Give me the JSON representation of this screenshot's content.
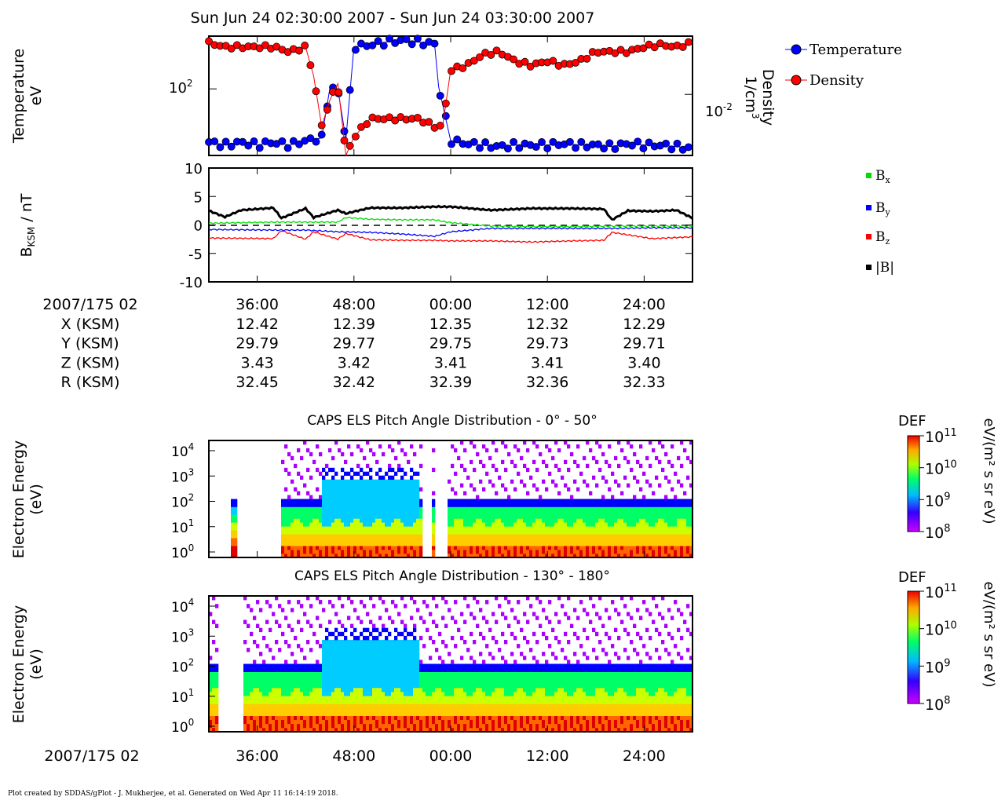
{
  "title": "Sun Jun 24 02:30:00 2007 - Sun Jun 24 03:30:00 2007",
  "footer": "Plot created by SDDAS/gPlot - J. Mukherjee, et al.  Generated on Wed Apr 11 16:14:19 2018.",
  "colors": {
    "temperature": "#0000ff",
    "density": "#ff0000",
    "bx": "#00dd00",
    "by": "#0000ff",
    "bz": "#ff0000",
    "bmag": "#000000",
    "spectrogram": [
      "#aa00ff",
      "#0000ff",
      "#00ccff",
      "#00ff66",
      "#ccff00",
      "#ffcc00",
      "#ff6600",
      "#dd0000"
    ]
  },
  "panel1": {
    "ylabel_line1": "Temperature",
    "ylabel_line2": "eV",
    "right_label_line1": "Density",
    "right_label_line2": "1/cm",
    "right_label_sup": "3",
    "left_tick": "10",
    "left_tick_sup": "2",
    "right_tick": "10",
    "right_tick_sup": "-2",
    "legend": [
      "Temperature",
      "Density"
    ]
  },
  "panel2": {
    "ylabel_main": "B",
    "ylabel_sub": "KSM",
    "ylabel_rest": " / nT",
    "yticks": [
      "10",
      "5",
      "0",
      "-5",
      "-10"
    ],
    "legend": [
      {
        "main": "B",
        "sub": "x"
      },
      {
        "main": "B",
        "sub": "y"
      },
      {
        "main": "B",
        "sub": "z"
      },
      {
        "main": "|B|",
        "sub": ""
      }
    ]
  },
  "ephemeris": {
    "rows": [
      {
        "label": "2007/175 02",
        "values": [
          "36:00",
          "48:00",
          "00:00",
          "12:00",
          "24:00"
        ]
      },
      {
        "label": "X (KSM)",
        "values": [
          "12.42",
          "12.39",
          "12.35",
          "12.32",
          "12.29"
        ]
      },
      {
        "label": "Y (KSM)",
        "values": [
          "29.79",
          "29.77",
          "29.75",
          "29.73",
          "29.71"
        ]
      },
      {
        "label": "Z (KSM)",
        "values": [
          "3.43",
          "3.42",
          "3.41",
          "3.41",
          "3.40"
        ]
      },
      {
        "label": "R (KSM)",
        "values": [
          "32.45",
          "32.42",
          "32.39",
          "32.36",
          "32.33"
        ]
      }
    ]
  },
  "spectrogram1": {
    "title": "CAPS ELS Pitch Angle Distribution - 0° - 50°",
    "ylabel_line1": "Electron Energy",
    "ylabel_line2": "(eV)",
    "colorbar_title": "DEF",
    "colorbar_units": "eV/(m² s sr eV)"
  },
  "spectrogram2": {
    "title": "CAPS ELS Pitch Angle Distribution - 130° - 180°",
    "ylabel_line1": "Electron Energy",
    "ylabel_line2": "(eV)",
    "colorbar_title": "DEF",
    "colorbar_units": "eV/(m² s sr eV)"
  },
  "energy_ticks": [
    {
      "base": "10",
      "exp": "4"
    },
    {
      "base": "10",
      "exp": "3"
    },
    {
      "base": "10",
      "exp": "2"
    },
    {
      "base": "10",
      "exp": "1"
    },
    {
      "base": "10",
      "exp": "0"
    }
  ],
  "colorbar_ticks": [
    {
      "base": "10",
      "exp": "11"
    },
    {
      "base": "10",
      "exp": "10"
    },
    {
      "base": "10",
      "exp": "9"
    },
    {
      "base": "10",
      "exp": "8"
    }
  ],
  "bottom_axis": {
    "label": "2007/175 02",
    "ticks": [
      "36:00",
      "48:00",
      "00:00",
      "12:00",
      "24:00"
    ]
  },
  "chart_data": [
    {
      "type": "line",
      "title": "Sun Jun 24 02:30:00 2007 - Sun Jun 24 03:30:00 2007",
      "xlabel": "",
      "ylabel": "Temperature eV",
      "y2label": "Density 1/cm3",
      "yscale": "log",
      "xlim": [
        0,
        60
      ],
      "series": [
        {
          "name": "Temperature",
          "x": [
            0,
            2,
            4,
            6,
            8,
            10,
            12,
            14,
            15,
            16,
            17,
            18,
            20,
            22,
            24,
            26,
            28,
            28.5,
            30,
            32,
            34,
            36,
            38,
            40,
            42,
            44,
            46,
            48,
            50,
            52,
            54,
            56,
            58,
            60
          ],
          "values": [
            33,
            31,
            33,
            31,
            33,
            31,
            34,
            36,
            100,
            100,
            35,
            240,
            250,
            265,
            275,
            265,
            255,
            105,
            34,
            32,
            31,
            30,
            31,
            31,
            31,
            32,
            31,
            31,
            30,
            32,
            31,
            31,
            30,
            29
          ]
        },
        {
          "name": "Density",
          "x": [
            0,
            2,
            4,
            6,
            8,
            10,
            12,
            13,
            14,
            15,
            16,
            17,
            18,
            20,
            22,
            24,
            26,
            28,
            29,
            30,
            32,
            34,
            36,
            38,
            40,
            42,
            44,
            46,
            48,
            50,
            52,
            54,
            56,
            58,
            60
          ],
          "values": [
            0.07,
            0.06,
            0.06,
            0.06,
            0.06,
            0.05,
            0.06,
            0.02,
            0.003,
            0.008,
            0.015,
            0.001,
            0.002,
            0.004,
            0.004,
            0.004,
            0.004,
            0.003,
            0.003,
            0.025,
            0.03,
            0.045,
            0.05,
            0.035,
            0.03,
            0.035,
            0.03,
            0.035,
            0.05,
            0.05,
            0.05,
            0.06,
            0.065,
            0.06,
            0.07
          ]
        }
      ]
    },
    {
      "type": "line",
      "ylabel": "B_KSM / nT",
      "ylim": [
        -10,
        10
      ],
      "xlim": [
        0,
        60
      ],
      "series": [
        {
          "name": "Bx",
          "x": [
            0,
            8,
            12,
            16,
            17,
            20,
            24,
            28,
            30,
            35,
            40,
            45,
            50,
            55,
            60
          ],
          "values": [
            0.3,
            0.5,
            0.5,
            0.5,
            1.3,
            1.0,
            0.9,
            0.9,
            0.4,
            -0.2,
            -0.3,
            -0.3,
            -0.2,
            -0.2,
            -0.2
          ]
        },
        {
          "name": "By",
          "x": [
            0,
            8,
            12,
            16,
            20,
            24,
            28,
            30,
            35,
            40,
            45,
            50,
            55,
            60
          ],
          "values": [
            -0.8,
            -0.9,
            -0.9,
            -1.2,
            -1.3,
            -1.6,
            -2.0,
            -1.2,
            -0.6,
            -0.6,
            -0.6,
            -0.6,
            -0.5,
            -0.5
          ]
        },
        {
          "name": "Bz",
          "x": [
            0,
            8,
            9,
            12,
            13,
            16,
            17,
            20,
            24,
            28,
            30,
            35,
            40,
            45,
            49,
            50,
            55,
            60
          ],
          "values": [
            -2.3,
            -2.4,
            -1.0,
            -2.5,
            -1.2,
            -2.5,
            -1.5,
            -2.6,
            -2.7,
            -2.7,
            -2.8,
            -2.8,
            -3.0,
            -2.8,
            -2.7,
            -1.3,
            -2.4,
            -2.1
          ]
        },
        {
          "name": "|B|",
          "x": [
            0,
            2,
            4,
            8,
            9,
            12,
            13,
            16,
            17,
            20,
            24,
            28,
            30,
            35,
            40,
            45,
            49,
            50,
            52,
            55,
            58,
            60
          ],
          "values": [
            2.5,
            1.4,
            2.6,
            3.0,
            1.2,
            2.9,
            1.3,
            2.6,
            2.0,
            3.0,
            3.0,
            3.2,
            3.2,
            2.6,
            2.9,
            2.9,
            2.8,
            0.9,
            2.5,
            2.4,
            2.6,
            1.2
          ]
        }
      ]
    },
    {
      "type": "heatmap",
      "title": "CAPS ELS Pitch Angle Distribution - 0° - 50°",
      "ylabel": "Electron Energy (eV)",
      "yscale": "log",
      "ylim": [
        1,
        10000
      ],
      "colorbar": {
        "label": "DEF eV/(m² s sr eV)",
        "range": [
          100000000,
          100000000000
        ],
        "scale": "log"
      }
    },
    {
      "type": "heatmap",
      "title": "CAPS ELS Pitch Angle Distribution - 130° - 180°",
      "ylabel": "Electron Energy (eV)",
      "yscale": "log",
      "ylim": [
        1,
        10000
      ],
      "colorbar": {
        "label": "DEF eV/(m² s sr eV)",
        "range": [
          100000000,
          100000000000
        ],
        "scale": "log"
      }
    }
  ]
}
